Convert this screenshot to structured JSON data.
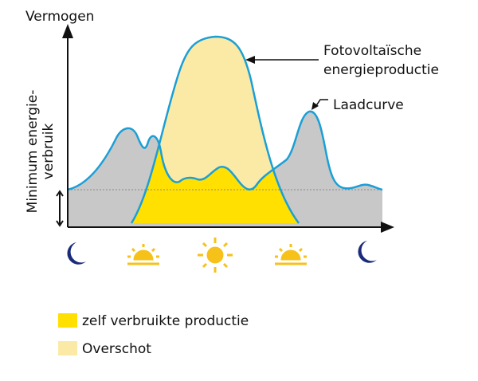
{
  "axis": {
    "y_label": "Vermogen",
    "baseline_label": [
      "Minimum energie-",
      "verbruik"
    ]
  },
  "annotations": {
    "pv": [
      "Fotovoltaïsche",
      "energieproductie"
    ],
    "load": "Laadcurve"
  },
  "legend": [
    {
      "label": "zelf verbruikte productie"
    },
    {
      "label": "Overschot"
    }
  ]
}
